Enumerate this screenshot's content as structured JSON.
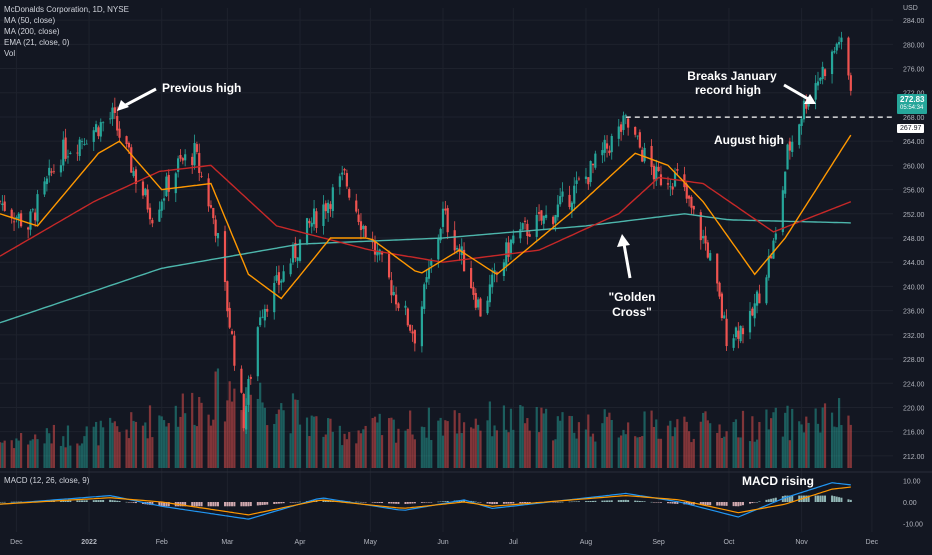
{
  "header": {
    "symbol_line": "McDonalds Corporation, 1D, NYSE",
    "indicators": [
      "MA (50, close)",
      "MA (200, close)",
      "EMA (21, close, 0)",
      "Vol"
    ],
    "currency": "USD"
  },
  "price_badge": {
    "price": "272.83",
    "countdown": "05:54:34"
  },
  "level_badge": "267.97",
  "macd_label": "MACD (12, 26, close, 9)",
  "annotations": {
    "previous_high": "Previous high",
    "breaks_january_line1": "Breaks January",
    "breaks_january_line2": "record high",
    "august_high": "August high",
    "golden_cross_line1": "\"Golden",
    "golden_cross_line2": "Cross\"",
    "macd_rising": "MACD rising"
  },
  "colors": {
    "background": "#131722",
    "up": "#26a69a",
    "down": "#ef5350",
    "ma50": "#c62828",
    "ma200": "#4db6ac",
    "ema21": "#ff9800",
    "macd": "#2196f3",
    "signal": "#ff9800",
    "grid": "#1e222d"
  },
  "chart_data": {
    "type": "line",
    "x_labels": [
      "Dec",
      "2022",
      "Feb",
      "Mar",
      "Apr",
      "May",
      "Jun",
      "Jul",
      "Aug",
      "Sep",
      "Oct",
      "Nov",
      "Dec"
    ],
    "y_ticks": [
      212,
      216,
      220,
      224,
      228,
      232,
      236,
      240,
      244,
      248,
      252,
      256,
      260,
      264,
      268,
      272,
      276,
      280,
      284
    ],
    "ylim": [
      210,
      286
    ],
    "macd_ticks": [
      "10.00",
      "0.00",
      "-10.00"
    ],
    "reference_level": 267.97,
    "last_price": 272.83,
    "price_anchors": [
      {
        "x": "2021-11-24",
        "close": 254
      },
      {
        "x": "2021-12-06",
        "close": 250
      },
      {
        "x": "2021-12-20",
        "close": 262
      },
      {
        "x": "2022-01-03",
        "close": 266
      },
      {
        "x": "2022-01-11",
        "close": 268
      },
      {
        "x": "2022-01-21",
        "close": 258
      },
      {
        "x": "2022-01-28",
        "close": 252
      },
      {
        "x": "2022-02-08",
        "close": 260
      },
      {
        "x": "2022-02-15",
        "close": 262
      },
      {
        "x": "2022-02-24",
        "close": 250
      },
      {
        "x": "2022-03-08",
        "close": 218
      },
      {
        "x": "2022-03-15",
        "close": 236
      },
      {
        "x": "2022-03-22",
        "close": 240
      },
      {
        "x": "2022-04-05",
        "close": 250
      },
      {
        "x": "2022-04-20",
        "close": 258
      },
      {
        "x": "2022-04-28",
        "close": 250
      },
      {
        "x": "2022-05-10",
        "close": 240
      },
      {
        "x": "2022-05-20",
        "close": 232
      },
      {
        "x": "2022-06-01",
        "close": 252
      },
      {
        "x": "2022-06-10",
        "close": 244
      },
      {
        "x": "2022-06-17",
        "close": 236
      },
      {
        "x": "2022-07-01",
        "close": 248
      },
      {
        "x": "2022-07-18",
        "close": 252
      },
      {
        "x": "2022-08-01",
        "close": 258
      },
      {
        "x": "2022-08-12",
        "close": 264
      },
      {
        "x": "2022-08-18",
        "close": 267
      },
      {
        "x": "2022-08-31",
        "close": 258
      },
      {
        "x": "2022-09-09",
        "close": 258
      },
      {
        "x": "2022-09-22",
        "close": 246
      },
      {
        "x": "2022-09-30",
        "close": 232
      },
      {
        "x": "2022-10-10",
        "close": 234
      },
      {
        "x": "2022-10-21",
        "close": 248
      },
      {
        "x": "2022-10-26",
        "close": 262
      },
      {
        "x": "2022-11-04",
        "close": 272
      },
      {
        "x": "2022-11-14",
        "close": 278
      },
      {
        "x": "2022-11-17",
        "close": 281
      },
      {
        "x": "2022-11-22",
        "close": 272.83
      }
    ],
    "ma200_anchors": [
      {
        "x": "2021-11-24",
        "value": 234
      },
      {
        "x": "2022-02-01",
        "value": 243
      },
      {
        "x": "2022-04-01",
        "value": 247
      },
      {
        "x": "2022-06-01",
        "value": 248
      },
      {
        "x": "2022-08-01",
        "value": 250
      },
      {
        "x": "2022-09-12",
        "value": 252
      },
      {
        "x": "2022-10-01",
        "value": 251
      },
      {
        "x": "2022-11-22",
        "value": 250.5
      }
    ],
    "ma50_anchors": [
      {
        "x": "2021-11-24",
        "value": 245
      },
      {
        "x": "2022-01-03",
        "value": 254
      },
      {
        "x": "2022-01-31",
        "value": 259
      },
      {
        "x": "2022-02-22",
        "value": 260
      },
      {
        "x": "2022-03-22",
        "value": 250
      },
      {
        "x": "2022-05-01",
        "value": 246
      },
      {
        "x": "2022-06-01",
        "value": 244
      },
      {
        "x": "2022-07-12",
        "value": 246
      },
      {
        "x": "2022-08-15",
        "value": 252
      },
      {
        "x": "2022-09-01",
        "value": 258
      },
      {
        "x": "2022-09-20",
        "value": 257
      },
      {
        "x": "2022-10-20",
        "value": 249
      },
      {
        "x": "2022-11-22",
        "value": 254
      }
    ],
    "ema21_anchors": [
      {
        "x": "2021-11-24",
        "value": 252
      },
      {
        "x": "2021-12-10",
        "value": 250
      },
      {
        "x": "2022-01-05",
        "value": 262
      },
      {
        "x": "2022-01-14",
        "value": 264
      },
      {
        "x": "2022-02-01",
        "value": 256
      },
      {
        "x": "2022-02-22",
        "value": 257
      },
      {
        "x": "2022-03-10",
        "value": 242
      },
      {
        "x": "2022-03-24",
        "value": 238
      },
      {
        "x": "2022-04-14",
        "value": 248
      },
      {
        "x": "2022-05-01",
        "value": 248
      },
      {
        "x": "2022-05-22",
        "value": 242
      },
      {
        "x": "2022-06-08",
        "value": 246
      },
      {
        "x": "2022-06-24",
        "value": 242
      },
      {
        "x": "2022-07-25",
        "value": 252
      },
      {
        "x": "2022-08-22",
        "value": 262
      },
      {
        "x": "2022-09-05",
        "value": 260
      },
      {
        "x": "2022-09-20",
        "value": 254
      },
      {
        "x": "2022-10-12",
        "value": 242
      },
      {
        "x": "2022-10-25",
        "value": 248
      },
      {
        "x": "2022-11-22",
        "value": 265
      }
    ],
    "volume_anchors_millions": [
      {
        "x": "2021-11-24",
        "value": 2.5
      },
      {
        "x": "2022-01-15",
        "value": 3.5
      },
      {
        "x": "2022-03-08",
        "value": 7.5
      },
      {
        "x": "2022-04-15",
        "value": 3.2
      },
      {
        "x": "2022-05-20",
        "value": 4.0
      },
      {
        "x": "2022-06-20",
        "value": 4.5
      },
      {
        "x": "2022-07-27",
        "value": 4.0
      },
      {
        "x": "2022-09-30",
        "value": 3.8
      },
      {
        "x": "2022-10-27",
        "value": 4.2
      },
      {
        "x": "2022-11-22",
        "value": 4.8
      }
    ],
    "macd_anchors": [
      {
        "x": "2021-11-24",
        "macd": -1,
        "signal": -1
      },
      {
        "x": "2022-01-10",
        "macd": 3,
        "signal": 2
      },
      {
        "x": "2022-02-01",
        "macd": -2,
        "signal": 0
      },
      {
        "x": "2022-03-10",
        "macd": -8,
        "signal": -6
      },
      {
        "x": "2022-04-10",
        "macd": 2,
        "signal": 1
      },
      {
        "x": "2022-05-15",
        "macd": -4,
        "signal": -3
      },
      {
        "x": "2022-06-10",
        "macd": 1,
        "signal": 0
      },
      {
        "x": "2022-06-22",
        "macd": -3,
        "signal": -2
      },
      {
        "x": "2022-08-18",
        "macd": 4,
        "signal": 3
      },
      {
        "x": "2022-09-10",
        "macd": 0,
        "signal": 1
      },
      {
        "x": "2022-10-05",
        "macd": -7,
        "signal": -5
      },
      {
        "x": "2022-10-25",
        "macd": 2,
        "signal": -1
      },
      {
        "x": "2022-11-14",
        "macd": 9,
        "signal": 6
      },
      {
        "x": "2022-11-22",
        "macd": 8,
        "signal": 7
      }
    ]
  }
}
